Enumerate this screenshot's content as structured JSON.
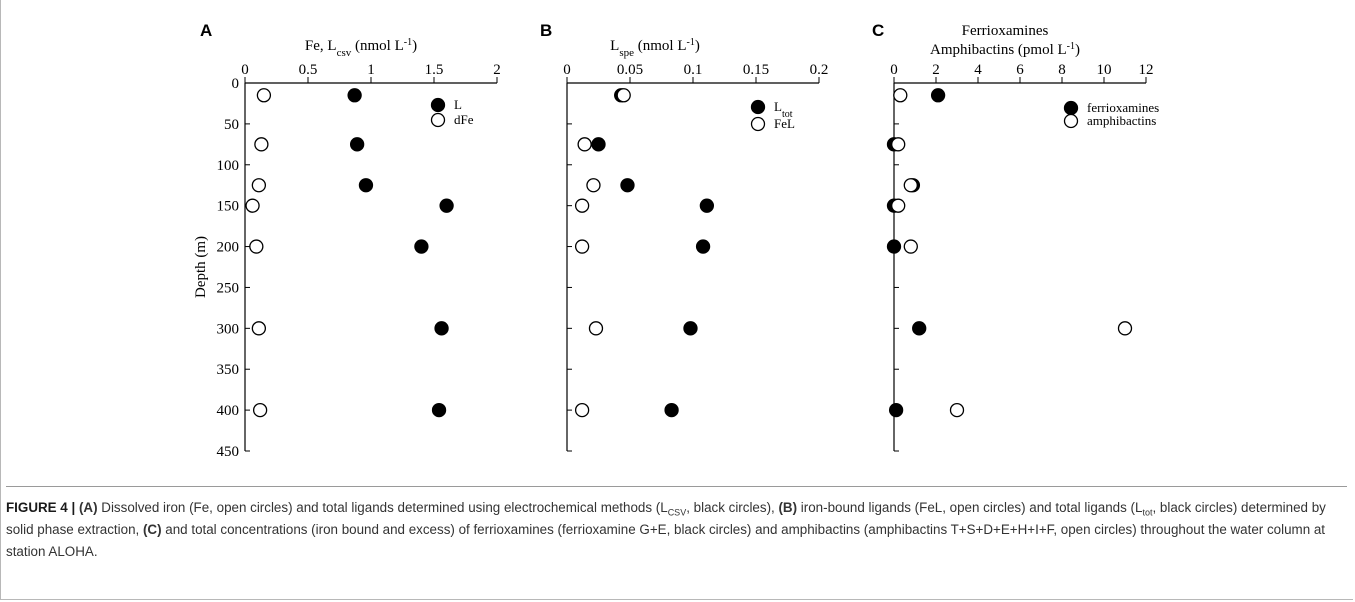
{
  "chart_data": [
    {
      "type": "scatter",
      "panel": "A",
      "xlabel": "Fe, L",
      "xlabel_sub": "csv",
      "xlabel_unit_pre": " (nmol L",
      "xlabel_unit_sup": "-1",
      "xlabel_unit_post": ")",
      "ylabel": "Depth (m)",
      "xlim": [
        0,
        2
      ],
      "ylim": [
        0,
        450
      ],
      "x_ticks": [
        "0",
        "0.5",
        "1",
        "1.5",
        "2"
      ],
      "y_ticks": [
        "0",
        "50",
        "100",
        "150",
        "200",
        "250",
        "300",
        "350",
        "400",
        "450"
      ],
      "legend": [
        {
          "label": "L",
          "sub": "",
          "marker": "filled"
        },
        {
          "label": "dFe",
          "sub": "",
          "marker": "open"
        }
      ],
      "series": [
        {
          "name": "L",
          "marker": "filled",
          "points": [
            [
              0.87,
              15
            ],
            [
              0.89,
              75
            ],
            [
              0.96,
              125
            ],
            [
              1.6,
              150
            ],
            [
              1.4,
              200
            ],
            [
              1.56,
              300
            ],
            [
              1.54,
              400
            ]
          ]
        },
        {
          "name": "dFe",
          "marker": "open",
          "points": [
            [
              0.15,
              15
            ],
            [
              0.13,
              75
            ],
            [
              0.11,
              125
            ],
            [
              0.06,
              150
            ],
            [
              0.09,
              200
            ],
            [
              0.11,
              300
            ],
            [
              0.12,
              400
            ]
          ]
        }
      ]
    },
    {
      "type": "scatter",
      "panel": "B",
      "xlabel": "L",
      "xlabel_sub": "spe",
      "xlabel_unit_pre": " (nmol L",
      "xlabel_unit_sup": "-1",
      "xlabel_unit_post": ")",
      "ylabel": "",
      "xlim": [
        0,
        0.2
      ],
      "ylim": [
        0,
        450
      ],
      "x_ticks": [
        "0",
        "0.05",
        "0.1",
        "0.15",
        "0.2"
      ],
      "y_ticks": [],
      "legend": [
        {
          "label": "L",
          "sub": "tot",
          "marker": "filled"
        },
        {
          "label": "FeL",
          "sub": "",
          "marker": "open"
        }
      ],
      "series": [
        {
          "name": "L_tot",
          "marker": "filled",
          "points": [
            [
              0.043,
              15
            ],
            [
              0.025,
              75
            ],
            [
              0.048,
              125
            ],
            [
              0.111,
              150
            ],
            [
              0.108,
              200
            ],
            [
              0.098,
              300
            ],
            [
              0.083,
              400
            ]
          ]
        },
        {
          "name": "FeL",
          "marker": "open",
          "points": [
            [
              0.045,
              15
            ],
            [
              0.014,
              75
            ],
            [
              0.021,
              125
            ],
            [
              0.012,
              150
            ],
            [
              0.012,
              200
            ],
            [
              0.023,
              300
            ],
            [
              0.012,
              400
            ]
          ]
        }
      ]
    },
    {
      "type": "scatter",
      "panel": "C",
      "title_line1": "Ferrioxamines",
      "xlabel": "Amphibactins (pmol L",
      "xlabel_sub": "",
      "xlabel_unit_pre": "",
      "xlabel_unit_sup": "-1",
      "xlabel_unit_post": ")",
      "ylabel": "",
      "xlim": [
        0,
        12
      ],
      "ylim": [
        0,
        450
      ],
      "x_ticks": [
        "0",
        "2",
        "4",
        "6",
        "8",
        "10",
        "12"
      ],
      "y_ticks": [],
      "legend": [
        {
          "label": "ferrioxamines",
          "sub": "",
          "marker": "filled"
        },
        {
          "label": "amphibactins",
          "sub": "",
          "marker": "open"
        }
      ],
      "series": [
        {
          "name": "ferrioxamines",
          "marker": "filled",
          "points": [
            [
              2.1,
              15
            ],
            [
              0.0,
              75
            ],
            [
              0.9,
              125
            ],
            [
              0.0,
              150
            ],
            [
              0.0,
              200
            ],
            [
              1.2,
              300
            ],
            [
              0.1,
              400
            ]
          ]
        },
        {
          "name": "amphibactins",
          "marker": "open",
          "points": [
            [
              0.3,
              15
            ],
            [
              0.2,
              75
            ],
            [
              0.8,
              125
            ],
            [
              0.2,
              150
            ],
            [
              0.8,
              200
            ],
            [
              11.0,
              300
            ],
            [
              3.0,
              400
            ]
          ]
        }
      ]
    }
  ],
  "caption": {
    "label": "FIGURE 4 |",
    "a_tag": "(A)",
    "a_text_1": " Dissolved iron (Fe, open circles) and total ligands determined using electrochemical methods (L",
    "a_sub": "CSV",
    "a_text_2": ", black circles), ",
    "b_tag": "(B)",
    "b_text_1": " iron-bound ligands (FeL, open circles) and total ligands (L",
    "b_sub": "tot",
    "b_text_2": ", black circles) determined by solid phase extraction, ",
    "c_tag": "(C)",
    "c_text": " and total concentrations (iron bound and excess) of ferrioxamines (ferrioxamine G+E, black circles) and amphibactins (amphibactins T+S+D+E+H+I+F, open circles) throughout the water column at station ALOHA."
  }
}
